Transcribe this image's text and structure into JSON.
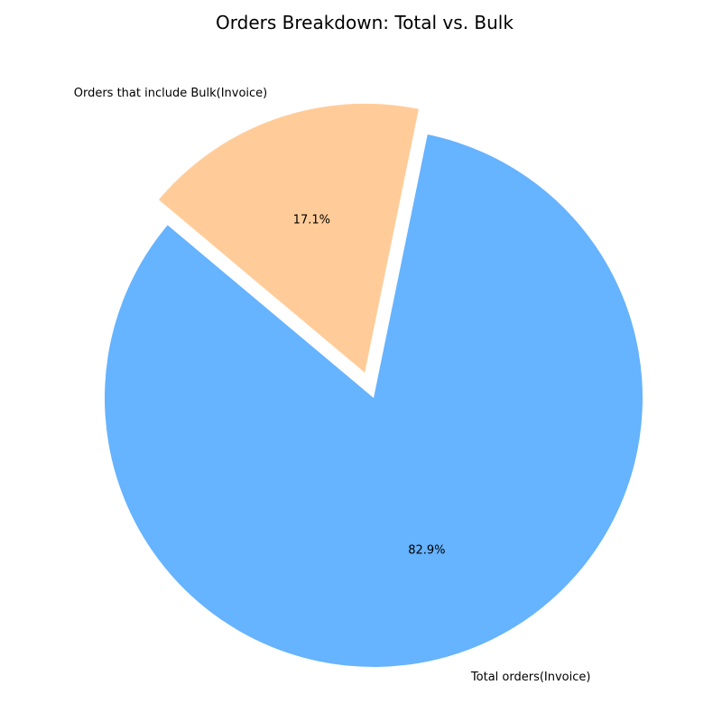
{
  "chart_data": {
    "type": "pie",
    "title": "Orders Breakdown: Total vs. Bulk",
    "start_angle_deg": 140,
    "slices": [
      {
        "label": "Total orders(Invoice)",
        "value": 82.9,
        "percent_label": "82.9%",
        "color": "#66b3ff",
        "exploded": false
      },
      {
        "label": "Orders that include Bulk(Invoice)",
        "value": 17.1,
        "percent_label": "17.1%",
        "color": "#ffcc99",
        "exploded": true
      }
    ]
  }
}
